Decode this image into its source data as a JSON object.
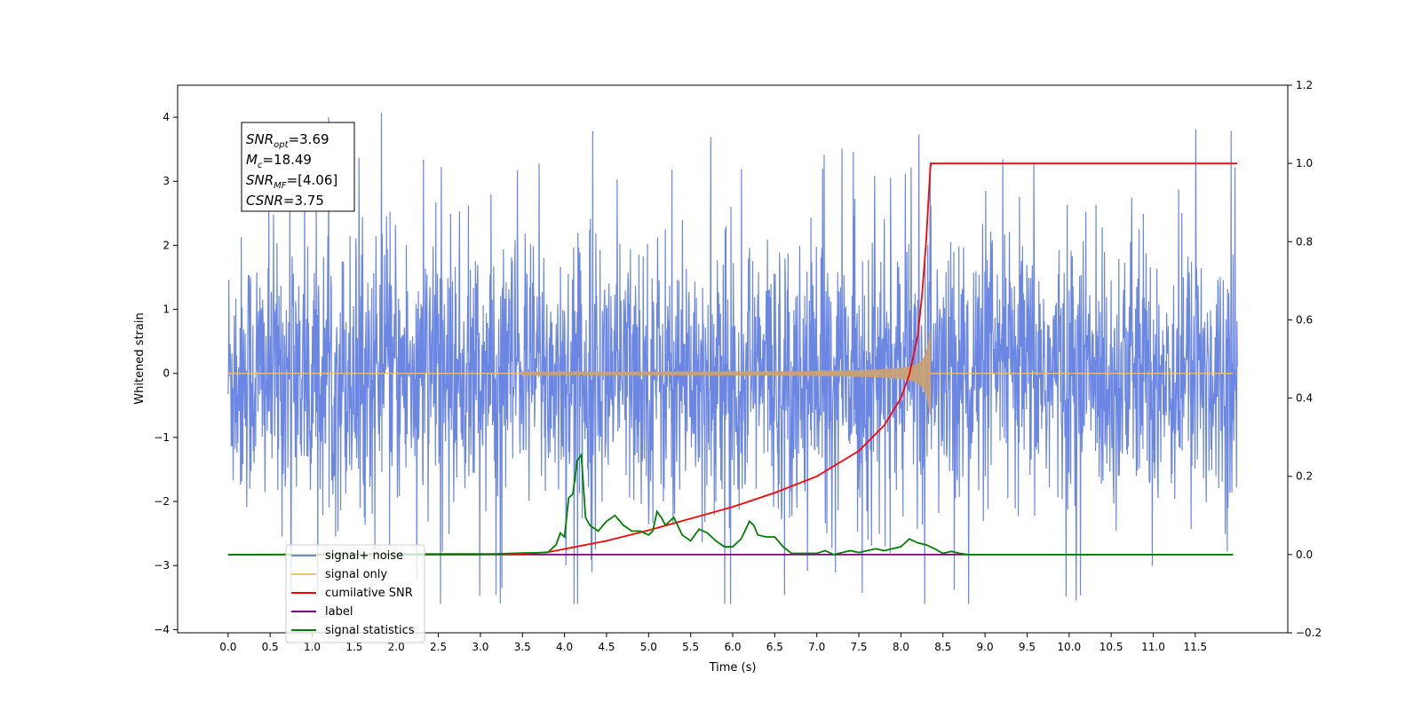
{
  "chart_data": {
    "type": "line",
    "xlabel": "Time (s)",
    "ylabel_left": "Whitened strain",
    "ylabel_right": "",
    "xlim": [
      -0.6,
      12.6
    ],
    "ylim_left": [
      -4.05,
      4.5
    ],
    "ylim_right": [
      -0.2,
      1.2
    ],
    "x_ticks": [
      0.0,
      0.5,
      1.0,
      1.5,
      2.0,
      2.5,
      3.0,
      3.5,
      4.0,
      4.5,
      5.0,
      5.5,
      6.0,
      6.5,
      7.0,
      7.5,
      8.0,
      8.5,
      9.0,
      9.5,
      10.0,
      10.5,
      11.0,
      11.5
    ],
    "x_tick_labels": [
      "0.0",
      "0.5",
      "1.0",
      "1.5",
      "2.0",
      "2.5",
      "3.0",
      "3.5",
      "4.0",
      "4.5",
      "5.0",
      "5.5",
      "6.0",
      "6.5",
      "7.0",
      "7.5",
      "8.0",
      "8.5",
      "9.0",
      "9.5",
      "10.0",
      "10.5",
      "11.0",
      "11.5"
    ],
    "y_ticks_left": [
      -4,
      -3,
      -2,
      -1,
      0,
      1,
      2,
      3,
      4
    ],
    "y_tick_labels_left": [
      "−4",
      "−3",
      "−2",
      "−1",
      "0",
      "1",
      "2",
      "3",
      "4"
    ],
    "y_ticks_right": [
      -0.2,
      0.0,
      0.2,
      0.4,
      0.6,
      0.8,
      1.0,
      1.2
    ],
    "y_tick_labels_right": [
      "−0.2",
      "0.0",
      "0.2",
      "0.4",
      "0.6",
      "0.8",
      "1.0",
      "1.2"
    ],
    "grid": false,
    "legend_position": "lower-left",
    "colors": {
      "noise": "#6b87e3",
      "signal": "#f5c26b",
      "cumulative": "#ff0000",
      "label": "#800080",
      "statistics": "#008000",
      "envelope": "#c8a276"
    },
    "series": [
      {
        "name": "signal+ noise",
        "axis": "left",
        "x_range": [
          0.0,
          12.0
        ],
        "amplitude_typical": 2.4,
        "amplitude_peak": 4.1
      },
      {
        "name": "signal only",
        "axis": "left",
        "chirp_start": 3.5,
        "chirp_end": 8.35,
        "peak_amplitude": 0.65
      },
      {
        "name": "cumilative SNR",
        "axis": "right",
        "x": [
          0.0,
          3.0,
          3.5,
          3.8,
          4.5,
          5.0,
          5.5,
          6.0,
          6.5,
          7.0,
          7.5,
          7.8,
          8.0,
          8.1,
          8.2,
          8.25,
          8.3,
          8.35,
          8.36,
          12.0
        ],
        "y": [
          0.0,
          0.0,
          0.002,
          0.006,
          0.035,
          0.062,
          0.092,
          0.122,
          0.158,
          0.2,
          0.265,
          0.33,
          0.4,
          0.46,
          0.56,
          0.66,
          0.8,
          0.99,
          1.0,
          1.0
        ]
      },
      {
        "name": "label",
        "axis": "right",
        "x": [
          0.0,
          11.95
        ],
        "y": [
          0.0,
          0.0
        ]
      },
      {
        "name": "signal statistics",
        "axis": "right",
        "x": [
          0.0,
          3.2,
          3.5,
          3.8,
          3.9,
          3.95,
          4.0,
          4.05,
          4.1,
          4.15,
          4.2,
          4.25,
          4.3,
          4.4,
          4.5,
          4.6,
          4.7,
          4.8,
          4.9,
          5.0,
          5.05,
          5.1,
          5.15,
          5.2,
          5.3,
          5.4,
          5.5,
          5.6,
          5.7,
          5.8,
          5.9,
          6.0,
          6.1,
          6.2,
          6.25,
          6.3,
          6.4,
          6.5,
          6.6,
          6.7,
          7.0,
          7.1,
          7.2,
          7.3,
          7.4,
          7.5,
          7.6,
          7.7,
          7.8,
          7.9,
          8.0,
          8.1,
          8.2,
          8.3,
          8.4,
          8.5,
          8.6,
          8.7,
          8.8,
          9.0,
          11.95
        ],
        "y": [
          0.0,
          0.002,
          0.004,
          0.005,
          0.025,
          0.055,
          0.045,
          0.145,
          0.155,
          0.24,
          0.255,
          0.095,
          0.075,
          0.06,
          0.085,
          0.1,
          0.075,
          0.06,
          0.06,
          0.05,
          0.06,
          0.11,
          0.095,
          0.075,
          0.095,
          0.05,
          0.035,
          0.065,
          0.055,
          0.035,
          0.02,
          0.02,
          0.04,
          0.085,
          0.075,
          0.05,
          0.045,
          0.045,
          0.02,
          0.003,
          0.003,
          0.01,
          0.0,
          0.005,
          0.01,
          0.005,
          0.01,
          0.015,
          0.01,
          0.015,
          0.02,
          0.04,
          0.03,
          0.025,
          0.015,
          0.003,
          0.008,
          0.003,
          0.0,
          0.0,
          0.0
        ]
      }
    ],
    "info_box": [
      {
        "main": "SNR",
        "sub": "opt",
        "rest": "=3.69"
      },
      {
        "main": "M",
        "sub": "c",
        "rest": "=18.49"
      },
      {
        "main": "SNR",
        "sub": "MF",
        "rest": "=[4.06]"
      },
      {
        "main": "CSNR",
        "sub": "",
        "rest": "=3.75"
      }
    ],
    "legend": [
      {
        "label": "signal+ noise",
        "color": "#6b87e3"
      },
      {
        "label": "signal only",
        "color": "#f5c26b"
      },
      {
        "label": "cumilative SNR",
        "color": "#ff0000"
      },
      {
        "label": "label",
        "color": "#800080"
      },
      {
        "label": "signal statistics",
        "color": "#008000"
      }
    ]
  }
}
